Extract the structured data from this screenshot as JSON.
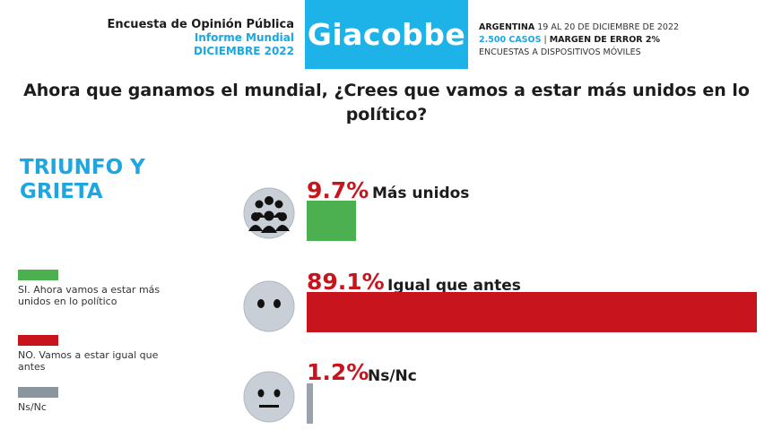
{
  "header": {
    "survey_title": "Encuesta de Opinión Pública",
    "report_name": "Informe Mundial",
    "report_date": "DICIEMBRE 2022",
    "brand": "Giacobbe",
    "country": "ARGENTINA",
    "fieldwork_dates": "19 AL 20 DE DICIEMBRE DE 2022",
    "cases": "2.500 CASOS",
    "separator": "|",
    "margin_of_error": "MARGEN DE ERROR 2%",
    "method": "ENCUESTAS A DISPOSITIVOS MÓVILES"
  },
  "question": "Ahora que ganamos el mundial, ¿Crees que vamos a estar más unidos en lo político?",
  "section_title": {
    "line1": "TRIUNFO Y",
    "line2": "GRIETA"
  },
  "legend": [
    {
      "label": "SI. Ahora vamos a estar más unidos en lo político",
      "color": "#4caf50"
    },
    {
      "label": "NO. Vamos a estar igual que antes",
      "color": "#c8141c"
    },
    {
      "label": "Ns/Nc",
      "color": "#8a959e"
    }
  ],
  "icons": [
    "crowd-icon",
    "neutral-face-icon",
    "undecided-face-icon"
  ],
  "chart_data": {
    "type": "bar",
    "orientation": "horizontal",
    "categories": [
      "Más unidos",
      "Igual que antes",
      "Ns/Nc"
    ],
    "values": [
      9.7,
      89.1,
      1.2
    ],
    "value_labels": [
      "9.7%",
      "89.1%",
      "1.2%"
    ],
    "colors": [
      "#4caf50",
      "#c8141c",
      "#9aa3ab"
    ],
    "xlim": [
      0,
      89.1
    ],
    "title": "",
    "xlabel": "",
    "ylabel": ""
  }
}
